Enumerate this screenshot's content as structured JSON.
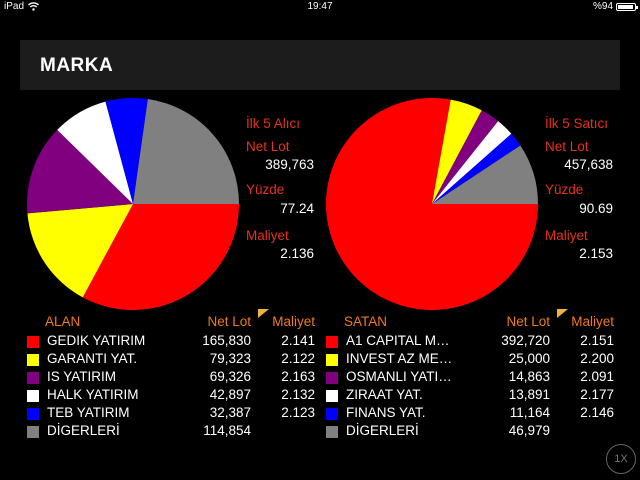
{
  "status_bar": {
    "device": "iPad",
    "time": "19:47",
    "battery": "%94",
    "battery_level": 0.94
  },
  "header": {
    "title": "MARKA"
  },
  "buyers": {
    "summary": {
      "title": "İlk 5 Alıcı",
      "net_lot_label": "Net Lot",
      "net_lot": "389,763",
      "percent_label": "Yüzde",
      "percent": "77.24",
      "cost_label": "Maliyet",
      "cost": "2.136"
    },
    "columns": {
      "name": "ALAN",
      "net_lot": "Net Lot",
      "cost": "Maliyet"
    },
    "rows": [
      {
        "name": "GEDIK YATIRIM",
        "net_lot": "165,830",
        "cost": "2.141",
        "color": "#ff0000"
      },
      {
        "name": "GARANTI YAT.",
        "net_lot": "79,323",
        "cost": "2.122",
        "color": "#ffff00"
      },
      {
        "name": "IS YATIRIM",
        "net_lot": "69,326",
        "cost": "2.163",
        "color": "#800080"
      },
      {
        "name": "HALK YATIRIM",
        "net_lot": "42,897",
        "cost": "2.132",
        "color": "#ffffff"
      },
      {
        "name": "TEB YATIRIM",
        "net_lot": "32,387",
        "cost": "2.123",
        "color": "#0000ff"
      },
      {
        "name": "DİGERLERİ",
        "net_lot": "114,854",
        "cost": "",
        "color": "#808080"
      }
    ]
  },
  "sellers": {
    "summary": {
      "title": "İlk 5 Satıcı",
      "net_lot_label": "Net Lot",
      "net_lot": "457,638",
      "percent_label": "Yüzde",
      "percent": "90.69",
      "cost_label": "Maliyet",
      "cost": "2.153"
    },
    "columns": {
      "name": "SATAN",
      "net_lot": "Net Lot",
      "cost": "Maliyet"
    },
    "rows": [
      {
        "name": "A1 CAPITAL M…",
        "net_lot": "392,720",
        "cost": "2.151",
        "color": "#ff0000"
      },
      {
        "name": "INVEST AZ ME…",
        "net_lot": "25,000",
        "cost": "2.200",
        "color": "#ffff00"
      },
      {
        "name": "OSMANLI YATI…",
        "net_lot": "14,863",
        "cost": "2.091",
        "color": "#800080"
      },
      {
        "name": "ZIRAAT YAT.",
        "net_lot": "13,891",
        "cost": "2.177",
        "color": "#ffffff"
      },
      {
        "name": "FINANS YAT.",
        "net_lot": "11,164",
        "cost": "2.146",
        "color": "#0000ff"
      },
      {
        "name": "DİGERLERİ",
        "net_lot": "46,979",
        "cost": "",
        "color": "#808080"
      }
    ]
  },
  "chart_data": [
    {
      "type": "pie",
      "categories": [
        "GEDIK YATIRIM",
        "GARANTI YAT.",
        "IS YATIRIM",
        "HALK YATIRIM",
        "TEB YATIRIM",
        "DİGERLERİ"
      ],
      "values": [
        165830,
        79323,
        69326,
        42897,
        32387,
        114854
      ],
      "colors": [
        "#ff0000",
        "#ffff00",
        "#800080",
        "#ffffff",
        "#0000ff",
        "#808080"
      ]
    },
    {
      "type": "pie",
      "categories": [
        "A1 CAPITAL M…",
        "INVEST AZ ME…",
        "OSMANLI YATI…",
        "ZIRAAT YAT.",
        "FINANS YAT.",
        "DİGERLERİ"
      ],
      "values": [
        392720,
        25000,
        14863,
        13891,
        11164,
        46979
      ],
      "colors": [
        "#ff0000",
        "#ffff00",
        "#800080",
        "#ffffff",
        "#0000ff",
        "#808080"
      ]
    }
  ],
  "controls": {
    "speed_label": "1X"
  }
}
